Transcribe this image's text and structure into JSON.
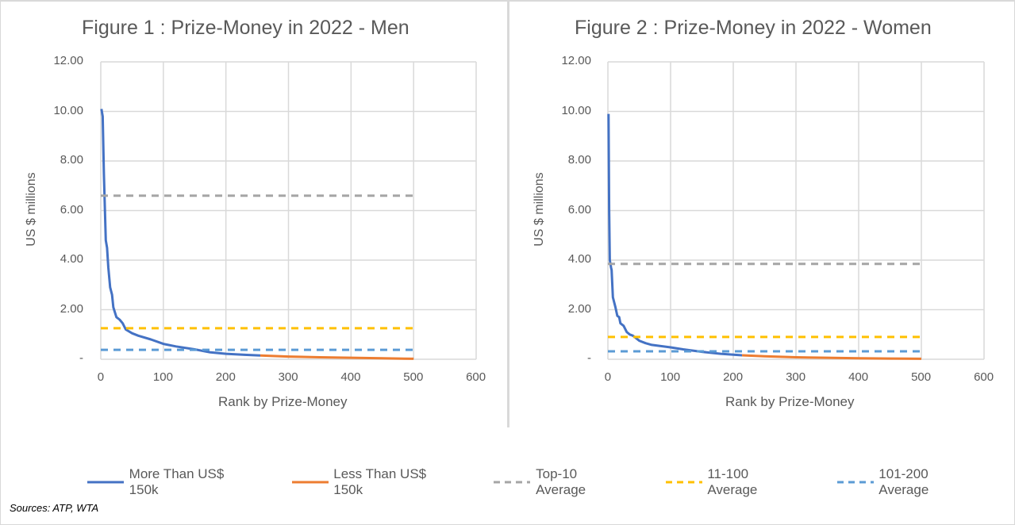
{
  "footer": {
    "source": "Sources: ATP, WTA"
  },
  "legend": [
    {
      "name": "More Than US$ 150k",
      "color": "#4472c4",
      "style": "solid"
    },
    {
      "name": "Less Than US$ 150k",
      "color": "#ed7d31",
      "style": "solid"
    },
    {
      "name": "Top-10 Average",
      "color": "#a5a5a5",
      "style": "dashed"
    },
    {
      "name": "11-100 Average",
      "color": "#ffc000",
      "style": "dashed"
    },
    {
      "name": "101-200 Average",
      "color": "#5b9bd5",
      "style": "dashed"
    }
  ],
  "chart_data": [
    {
      "type": "line",
      "title": "Figure 1 : Prize-Money in 2022 - Men",
      "xlabel": "Rank by Prize-Money",
      "ylabel": "US $ millions",
      "xlim": [
        0,
        600
      ],
      "ylim": [
        0,
        12
      ],
      "xticks": [
        "0",
        "100",
        "200",
        "300",
        "400",
        "500",
        "600"
      ],
      "yticks": [
        "-",
        "2.00",
        "4.00",
        "6.00",
        "8.00",
        "10.00",
        "12.00"
      ],
      "grid": true,
      "legend_position": "bottom",
      "series": [
        {
          "name": "More Than US$ 150k",
          "x": [
            1,
            3,
            5,
            8,
            10,
            12,
            15,
            18,
            20,
            25,
            30,
            35,
            40,
            50,
            60,
            80,
            100,
            120,
            150,
            175,
            200,
            230,
            255
          ],
          "values": [
            10.1,
            9.8,
            7.5,
            4.8,
            4.5,
            3.7,
            2.9,
            2.6,
            2.1,
            1.7,
            1.6,
            1.45,
            1.2,
            1.05,
            0.95,
            0.8,
            0.62,
            0.52,
            0.4,
            0.28,
            0.22,
            0.18,
            0.15
          ]
        },
        {
          "name": "Less Than US$ 150k",
          "x": [
            255,
            300,
            350,
            400,
            450,
            500
          ],
          "values": [
            0.15,
            0.11,
            0.08,
            0.06,
            0.04,
            0.02
          ]
        },
        {
          "name": "Top-10 Average",
          "x": [
            0,
            500
          ],
          "values": [
            6.6,
            6.6
          ]
        },
        {
          "name": "11-100 Average",
          "x": [
            0,
            500
          ],
          "values": [
            1.25,
            1.25
          ]
        },
        {
          "name": "101-200 Average",
          "x": [
            0,
            500
          ],
          "values": [
            0.38,
            0.38
          ]
        }
      ]
    },
    {
      "type": "line",
      "title": "Figure 2 : Prize-Money in 2022 - Women",
      "xlabel": "Rank by Prize-Money",
      "ylabel": "US $ millions",
      "xlim": [
        0,
        600
      ],
      "ylim": [
        0,
        12
      ],
      "xticks": [
        "0",
        "100",
        "200",
        "300",
        "400",
        "500",
        "600"
      ],
      "yticks": [
        "-",
        "2.00",
        "4.00",
        "6.00",
        "8.00",
        "10.00",
        "12.00"
      ],
      "grid": true,
      "legend_position": "bottom",
      "series": [
        {
          "name": "More Than US$ 150k",
          "x": [
            1,
            2,
            3,
            5,
            6,
            8,
            10,
            12,
            15,
            18,
            20,
            25,
            30,
            35,
            40,
            50,
            60,
            70,
            100,
            120,
            150,
            180,
            214
          ],
          "values": [
            9.9,
            6.0,
            4.0,
            3.7,
            3.6,
            2.5,
            2.3,
            2.1,
            1.75,
            1.7,
            1.45,
            1.35,
            1.1,
            1.0,
            0.95,
            0.75,
            0.65,
            0.58,
            0.48,
            0.4,
            0.3,
            0.22,
            0.16
          ]
        },
        {
          "name": "Less Than US$ 150k",
          "x": [
            214,
            250,
            300,
            350,
            400,
            450,
            500
          ],
          "values": [
            0.16,
            0.12,
            0.08,
            0.06,
            0.04,
            0.03,
            0.02
          ]
        },
        {
          "name": "Top-10 Average",
          "x": [
            0,
            500
          ],
          "values": [
            3.85,
            3.85
          ]
        },
        {
          "name": "11-100 Average",
          "x": [
            0,
            500
          ],
          "values": [
            0.9,
            0.9
          ]
        },
        {
          "name": "101-200 Average",
          "x": [
            0,
            500
          ],
          "values": [
            0.32,
            0.32
          ]
        }
      ]
    }
  ]
}
